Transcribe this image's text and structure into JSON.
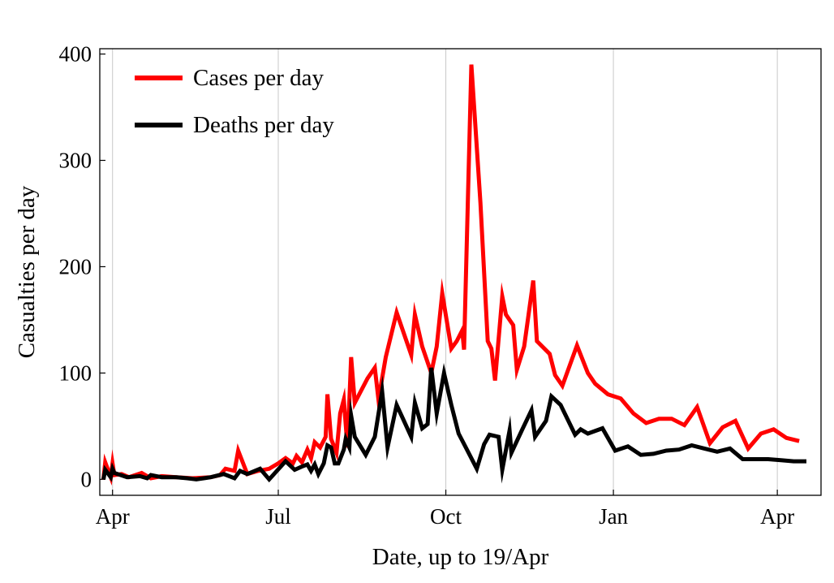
{
  "chart_data": {
    "type": "line",
    "title": "",
    "xlabel": "Date, up to 19/Apr",
    "ylabel": "Casualties per day",
    "ylim": [
      -15,
      405
    ],
    "yticks": [
      0,
      100,
      200,
      300,
      400
    ],
    "xlim": [
      "2020-03-25",
      "2021-04-25"
    ],
    "xticks": [
      {
        "date": "2020-04-01",
        "label": "Apr"
      },
      {
        "date": "2020-07-01",
        "label": "Jul"
      },
      {
        "date": "2020-10-01",
        "label": "Oct"
      },
      {
        "date": "2021-01-01",
        "label": "Jan"
      },
      {
        "date": "2021-04-01",
        "label": "Apr"
      }
    ],
    "grid": "vertical at x ticks",
    "legend_position": "top-left",
    "series": [
      {
        "name": "Cases per day",
        "color": "#ff0000",
        "points": [
          [
            "2020-03-27",
            0
          ],
          [
            "2020-03-28",
            16
          ],
          [
            "2020-03-31",
            2
          ],
          [
            "2020-04-01",
            15
          ],
          [
            "2020-04-02",
            4
          ],
          [
            "2020-04-06",
            5
          ],
          [
            "2020-04-10",
            2
          ],
          [
            "2020-04-17",
            6
          ],
          [
            "2020-04-22",
            1
          ],
          [
            "2020-04-28",
            3
          ],
          [
            "2020-05-06",
            2
          ],
          [
            "2020-05-15",
            1
          ],
          [
            "2020-05-25",
            2
          ],
          [
            "2020-05-30",
            4
          ],
          [
            "2020-06-02",
            10
          ],
          [
            "2020-06-07",
            8
          ],
          [
            "2020-06-09",
            27
          ],
          [
            "2020-06-14",
            5
          ],
          [
            "2020-06-20",
            8
          ],
          [
            "2020-06-26",
            10
          ],
          [
            "2020-07-01",
            15
          ],
          [
            "2020-07-05",
            20
          ],
          [
            "2020-07-09",
            15
          ],
          [
            "2020-07-11",
            22
          ],
          [
            "2020-07-14",
            16
          ],
          [
            "2020-07-17",
            28
          ],
          [
            "2020-07-19",
            20
          ],
          [
            "2020-07-21",
            35
          ],
          [
            "2020-07-24",
            30
          ],
          [
            "2020-07-27",
            40
          ],
          [
            "2020-07-28",
            80
          ],
          [
            "2020-07-30",
            38
          ],
          [
            "2020-08-02",
            25
          ],
          [
            "2020-08-04",
            62
          ],
          [
            "2020-08-06",
            75
          ],
          [
            "2020-08-08",
            30
          ],
          [
            "2020-08-10",
            115
          ],
          [
            "2020-08-12",
            72
          ],
          [
            "2020-08-19",
            95
          ],
          [
            "2020-08-23",
            105
          ],
          [
            "2020-08-25",
            75
          ],
          [
            "2020-08-29",
            115
          ],
          [
            "2020-09-04",
            157
          ],
          [
            "2020-09-12",
            117
          ],
          [
            "2020-09-14",
            155
          ],
          [
            "2020-09-18",
            125
          ],
          [
            "2020-09-23",
            100
          ],
          [
            "2020-09-26",
            125
          ],
          [
            "2020-09-29",
            175
          ],
          [
            "2020-10-04",
            123
          ],
          [
            "2020-10-07",
            130
          ],
          [
            "2020-10-10",
            140
          ],
          [
            "2020-10-11",
            122
          ],
          [
            "2020-10-15",
            390
          ],
          [
            "2020-10-20",
            260
          ],
          [
            "2020-10-24",
            130
          ],
          [
            "2020-10-26",
            123
          ],
          [
            "2020-10-28",
            93
          ],
          [
            "2020-11-01",
            172
          ],
          [
            "2020-11-03",
            155
          ],
          [
            "2020-11-07",
            145
          ],
          [
            "2020-11-09",
            103
          ],
          [
            "2020-11-13",
            125
          ],
          [
            "2020-11-18",
            187
          ],
          [
            "2020-11-20",
            130
          ],
          [
            "2020-11-27",
            118
          ],
          [
            "2020-11-30",
            98
          ],
          [
            "2020-12-04",
            88
          ],
          [
            "2020-12-12",
            126
          ],
          [
            "2020-12-18",
            100
          ],
          [
            "2020-12-22",
            90
          ],
          [
            "2020-12-29",
            80
          ],
          [
            "2021-01-05",
            76
          ],
          [
            "2021-01-12",
            62
          ],
          [
            "2021-01-19",
            53
          ],
          [
            "2021-01-26",
            57
          ],
          [
            "2021-02-02",
            57
          ],
          [
            "2021-02-09",
            51
          ],
          [
            "2021-02-16",
            68
          ],
          [
            "2021-02-23",
            34
          ],
          [
            "2021-03-02",
            49
          ],
          [
            "2021-03-09",
            55
          ],
          [
            "2021-03-16",
            29
          ],
          [
            "2021-03-23",
            43
          ],
          [
            "2021-03-30",
            47
          ],
          [
            "2021-04-06",
            39
          ],
          [
            "2021-04-13",
            36
          ]
        ]
      },
      {
        "name": "Deaths per day",
        "color": "#000000",
        "points": [
          [
            "2020-03-27",
            0
          ],
          [
            "2020-03-28",
            9
          ],
          [
            "2020-03-31",
            2
          ],
          [
            "2020-04-01",
            10
          ],
          [
            "2020-04-02",
            6
          ],
          [
            "2020-04-09",
            2
          ],
          [
            "2020-04-16",
            3
          ],
          [
            "2020-04-20",
            1
          ],
          [
            "2020-04-22",
            4
          ],
          [
            "2020-04-28",
            2
          ],
          [
            "2020-05-06",
            2
          ],
          [
            "2020-05-12",
            1
          ],
          [
            "2020-05-17",
            0
          ],
          [
            "2020-05-25",
            2
          ],
          [
            "2020-06-01",
            5
          ],
          [
            "2020-06-07",
            1
          ],
          [
            "2020-06-10",
            8
          ],
          [
            "2020-06-14",
            5
          ],
          [
            "2020-06-21",
            10
          ],
          [
            "2020-06-26",
            0
          ],
          [
            "2020-07-05",
            17
          ],
          [
            "2020-07-10",
            9
          ],
          [
            "2020-07-14",
            12
          ],
          [
            "2020-07-17",
            14
          ],
          [
            "2020-07-19",
            8
          ],
          [
            "2020-07-21",
            14
          ],
          [
            "2020-07-23",
            5
          ],
          [
            "2020-07-26",
            15
          ],
          [
            "2020-07-28",
            32
          ],
          [
            "2020-07-30",
            30
          ],
          [
            "2020-08-01",
            15
          ],
          [
            "2020-08-03",
            15
          ],
          [
            "2020-08-06",
            28
          ],
          [
            "2020-08-07",
            38
          ],
          [
            "2020-08-09",
            30
          ],
          [
            "2020-08-10",
            60
          ],
          [
            "2020-08-12",
            40
          ],
          [
            "2020-08-18",
            23
          ],
          [
            "2020-08-23",
            40
          ],
          [
            "2020-08-27",
            83
          ],
          [
            "2020-08-30",
            30
          ],
          [
            "2020-09-04",
            70
          ],
          [
            "2020-09-08",
            55
          ],
          [
            "2020-09-12",
            40
          ],
          [
            "2020-09-14",
            72
          ],
          [
            "2020-09-18",
            48
          ],
          [
            "2020-09-21",
            52
          ],
          [
            "2020-09-23",
            105
          ],
          [
            "2020-09-26",
            62
          ],
          [
            "2020-09-30",
            100
          ],
          [
            "2020-10-04",
            70
          ],
          [
            "2020-10-08",
            43
          ],
          [
            "2020-10-12",
            30
          ],
          [
            "2020-10-18",
            10
          ],
          [
            "2020-10-22",
            33
          ],
          [
            "2020-10-25",
            42
          ],
          [
            "2020-10-30",
            40
          ],
          [
            "2020-11-01",
            9
          ],
          [
            "2020-11-05",
            46
          ],
          [
            "2020-11-06",
            25
          ],
          [
            "2020-11-12",
            47
          ],
          [
            "2020-11-17",
            65
          ],
          [
            "2020-11-19",
            40
          ],
          [
            "2020-11-25",
            55
          ],
          [
            "2020-11-28",
            78
          ],
          [
            "2020-12-03",
            70
          ],
          [
            "2020-12-11",
            42
          ],
          [
            "2020-12-14",
            47
          ],
          [
            "2020-12-18",
            43
          ],
          [
            "2020-12-26",
            48
          ],
          [
            "2021-01-02",
            27
          ],
          [
            "2021-01-09",
            31
          ],
          [
            "2021-01-16",
            23
          ],
          [
            "2021-01-23",
            24
          ],
          [
            "2021-01-30",
            27
          ],
          [
            "2021-02-06",
            28
          ],
          [
            "2021-02-13",
            32
          ],
          [
            "2021-02-20",
            29
          ],
          [
            "2021-02-27",
            26
          ],
          [
            "2021-03-06",
            29
          ],
          [
            "2021-03-13",
            19
          ],
          [
            "2021-03-20",
            19
          ],
          [
            "2021-03-27",
            19
          ],
          [
            "2021-04-03",
            18
          ],
          [
            "2021-04-10",
            17
          ],
          [
            "2021-04-17",
            17
          ]
        ]
      }
    ]
  }
}
